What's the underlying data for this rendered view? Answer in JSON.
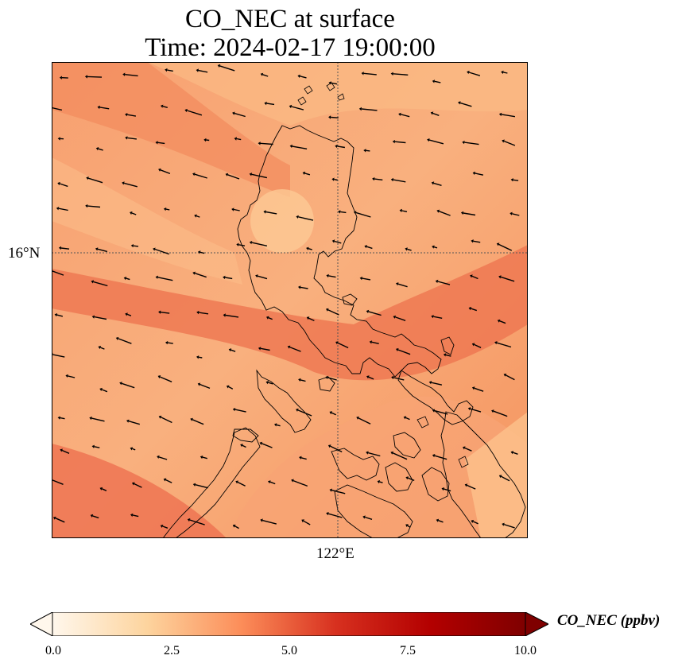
{
  "title": {
    "line1": "CO_NEC at surface",
    "line2": "Time: 2024-02-17 19:00:00"
  },
  "map": {
    "region": "Luzon, Philippines",
    "gridlines": {
      "lat_label": "16°N",
      "lon_label": "122°E"
    },
    "field_colors": [
      "#f9a876",
      "#f48c5e",
      "#eb6e4a",
      "#fcc48a"
    ]
  },
  "colorbar": {
    "label": "CO_NEC (ppbv)",
    "min": 0.0,
    "max": 10.0,
    "ticks": [
      "0.0",
      "2.5",
      "5.0",
      "7.5",
      "10.0"
    ],
    "colormap": [
      "#fff7ec",
      "#fdd49e",
      "#fc8d59",
      "#d7301f",
      "#b30000",
      "#7f0000"
    ],
    "extend": "both"
  }
}
